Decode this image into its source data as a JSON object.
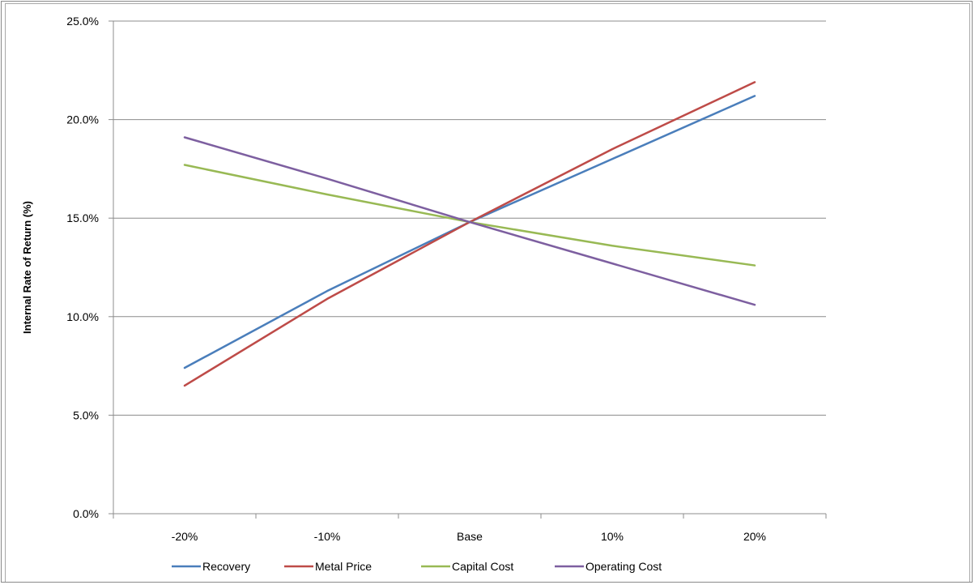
{
  "chart_data": {
    "type": "line",
    "ylabel": "Internal Rate of Return (%)",
    "xlabel": "",
    "categories": [
      "-20%",
      "-10%",
      "Base",
      "10%",
      "20%"
    ],
    "ylim": [
      0,
      25
    ],
    "yticks": [
      "0.0%",
      "5.0%",
      "10.0%",
      "15.0%",
      "20.0%",
      "25.0%"
    ],
    "ytick_values": [
      0,
      5,
      10,
      15,
      20,
      25
    ],
    "grid": "horizontal",
    "legend_position": "bottom",
    "series": [
      {
        "name": "Recovery",
        "color": "#4a7ebb",
        "values": [
          7.4,
          11.3,
          14.8,
          18.0,
          21.2
        ]
      },
      {
        "name": "Metal Price",
        "color": "#be4b48",
        "values": [
          6.5,
          10.9,
          14.8,
          18.5,
          21.9
        ]
      },
      {
        "name": "Capital Cost",
        "color": "#98b954",
        "values": [
          17.7,
          16.2,
          14.8,
          13.6,
          12.6
        ]
      },
      {
        "name": "Operating Cost",
        "color": "#7d5fa0",
        "values": [
          19.1,
          17.0,
          14.8,
          12.7,
          10.6
        ]
      }
    ]
  }
}
